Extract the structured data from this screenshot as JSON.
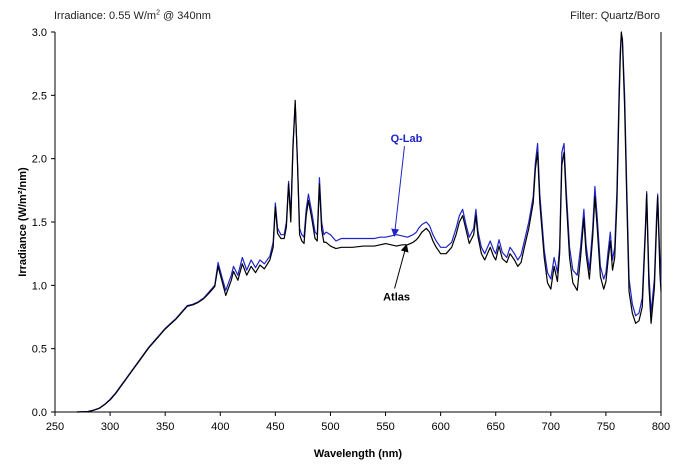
{
  "header": {
    "irradiance_prefix": "Irradiance: 0.55 W/m",
    "irradiance_sup": "2",
    "irradiance_suffix": " @ 340nm",
    "filter": "Filter: Quartz/Boro"
  },
  "chart_data": {
    "type": "line",
    "title": "",
    "xlabel": "Wavelength (nm)",
    "ylabel": "Irradiance (W/m²/nm)",
    "xlim": [
      250,
      800
    ],
    "ylim": [
      0,
      3.0
    ],
    "xticks": [
      250,
      300,
      350,
      400,
      450,
      500,
      550,
      600,
      650,
      700,
      750,
      800
    ],
    "yticks": [
      0,
      0.5,
      1.0,
      1.5,
      2.0,
      2.5,
      3.0
    ],
    "ytick_labels": [
      "0.0",
      "0.5",
      "1.0",
      "1.5",
      "2.0",
      "2.5",
      "3.0"
    ],
    "grid": false,
    "legend": "annotations",
    "annotations": [
      {
        "text": "Q-Lab",
        "color": "#1f24c8",
        "label_at": [
          569,
          2.13
        ],
        "arrow_to": [
          558,
          1.39
        ]
      },
      {
        "text": "Atlas",
        "color": "#000000",
        "label_at": [
          560,
          0.88
        ],
        "arrow_to": [
          569,
          1.32
        ]
      }
    ],
    "series": [
      {
        "name": "Q-Lab",
        "color": "#1f24c8",
        "points": [
          [
            270,
            0
          ],
          [
            280,
            0.004
          ],
          [
            285,
            0.015
          ],
          [
            290,
            0.03
          ],
          [
            295,
            0.06
          ],
          [
            300,
            0.1
          ],
          [
            305,
            0.15
          ],
          [
            310,
            0.21
          ],
          [
            315,
            0.27
          ],
          [
            320,
            0.33
          ],
          [
            325,
            0.39
          ],
          [
            330,
            0.45
          ],
          [
            335,
            0.51
          ],
          [
            340,
            0.56
          ],
          [
            345,
            0.61
          ],
          [
            350,
            0.66
          ],
          [
            355,
            0.7
          ],
          [
            360,
            0.74
          ],
          [
            365,
            0.79
          ],
          [
            370,
            0.84
          ],
          [
            375,
            0.85
          ],
          [
            380,
            0.87
          ],
          [
            385,
            0.9
          ],
          [
            390,
            0.95
          ],
          [
            395,
            1.0
          ],
          [
            398,
            1.18
          ],
          [
            402,
            1.05
          ],
          [
            405,
            0.96
          ],
          [
            410,
            1.08
          ],
          [
            412,
            1.15
          ],
          [
            416,
            1.08
          ],
          [
            420,
            1.22
          ],
          [
            424,
            1.12
          ],
          [
            428,
            1.2
          ],
          [
            432,
            1.14
          ],
          [
            436,
            1.2
          ],
          [
            440,
            1.17
          ],
          [
            445,
            1.23
          ],
          [
            448,
            1.34
          ],
          [
            450,
            1.65
          ],
          [
            452,
            1.45
          ],
          [
            455,
            1.4
          ],
          [
            458,
            1.4
          ],
          [
            460,
            1.5
          ],
          [
            462,
            1.82
          ],
          [
            464,
            1.55
          ],
          [
            466,
            2.12
          ],
          [
            468,
            2.43
          ],
          [
            470,
            2.0
          ],
          [
            472,
            1.45
          ],
          [
            474,
            1.4
          ],
          [
            476,
            1.38
          ],
          [
            478,
            1.6
          ],
          [
            480,
            1.72
          ],
          [
            483,
            1.58
          ],
          [
            486,
            1.42
          ],
          [
            488,
            1.4
          ],
          [
            490,
            1.85
          ],
          [
            492,
            1.5
          ],
          [
            494,
            1.4
          ],
          [
            496,
            1.42
          ],
          [
            500,
            1.4
          ],
          [
            505,
            1.35
          ],
          [
            510,
            1.37
          ],
          [
            520,
            1.37
          ],
          [
            530,
            1.37
          ],
          [
            540,
            1.37
          ],
          [
            545,
            1.38
          ],
          [
            550,
            1.38
          ],
          [
            555,
            1.39
          ],
          [
            560,
            1.4
          ],
          [
            565,
            1.39
          ],
          [
            570,
            1.38
          ],
          [
            575,
            1.4
          ],
          [
            578,
            1.42
          ],
          [
            580,
            1.45
          ],
          [
            583,
            1.48
          ],
          [
            587,
            1.5
          ],
          [
            590,
            1.47
          ],
          [
            593,
            1.4
          ],
          [
            596,
            1.35
          ],
          [
            600,
            1.3
          ],
          [
            605,
            1.3
          ],
          [
            610,
            1.34
          ],
          [
            614,
            1.45
          ],
          [
            617,
            1.55
          ],
          [
            620,
            1.6
          ],
          [
            623,
            1.48
          ],
          [
            626,
            1.38
          ],
          [
            630,
            1.45
          ],
          [
            632,
            1.6
          ],
          [
            634,
            1.42
          ],
          [
            637,
            1.3
          ],
          [
            640,
            1.25
          ],
          [
            645,
            1.35
          ],
          [
            648,
            1.28
          ],
          [
            650,
            1.25
          ],
          [
            653,
            1.36
          ],
          [
            656,
            1.26
          ],
          [
            660,
            1.22
          ],
          [
            663,
            1.3
          ],
          [
            667,
            1.25
          ],
          [
            670,
            1.2
          ],
          [
            673,
            1.24
          ],
          [
            676,
            1.35
          ],
          [
            680,
            1.5
          ],
          [
            684,
            1.7
          ],
          [
            686,
            1.97
          ],
          [
            688,
            2.12
          ],
          [
            690,
            1.72
          ],
          [
            694,
            1.28
          ],
          [
            697,
            1.1
          ],
          [
            700,
            1.05
          ],
          [
            703,
            1.22
          ],
          [
            706,
            1.1
          ],
          [
            708,
            1.3
          ],
          [
            710,
            2.05
          ],
          [
            712,
            2.12
          ],
          [
            714,
            1.75
          ],
          [
            717,
            1.3
          ],
          [
            720,
            1.12
          ],
          [
            724,
            1.08
          ],
          [
            727,
            1.3
          ],
          [
            730,
            1.6
          ],
          [
            732,
            1.32
          ],
          [
            735,
            1.12
          ],
          [
            738,
            1.45
          ],
          [
            740,
            1.78
          ],
          [
            742,
            1.55
          ],
          [
            745,
            1.15
          ],
          [
            748,
            1.05
          ],
          [
            750,
            1.1
          ],
          [
            752,
            1.27
          ],
          [
            754,
            1.42
          ],
          [
            756,
            1.2
          ],
          [
            758,
            1.3
          ],
          [
            760,
            1.75
          ],
          [
            762,
            2.55
          ],
          [
            763,
            2.85
          ],
          [
            764,
            2.98
          ],
          [
            765,
            2.95
          ],
          [
            767,
            2.5
          ],
          [
            769,
            1.75
          ],
          [
            771,
            1.05
          ],
          [
            774,
            0.85
          ],
          [
            777,
            0.76
          ],
          [
            780,
            0.78
          ],
          [
            783,
            0.9
          ],
          [
            786,
            1.5
          ],
          [
            787,
            1.74
          ],
          [
            789,
            1.1
          ],
          [
            791,
            0.78
          ],
          [
            794,
            1.05
          ],
          [
            796,
            1.55
          ],
          [
            797,
            1.72
          ],
          [
            799,
            1.2
          ],
          [
            800,
            1.0
          ]
        ]
      },
      {
        "name": "Atlas",
        "color": "#000000",
        "points": [
          [
            270,
            0
          ],
          [
            280,
            0.003
          ],
          [
            285,
            0.013
          ],
          [
            290,
            0.028
          ],
          [
            295,
            0.058
          ],
          [
            300,
            0.095
          ],
          [
            305,
            0.145
          ],
          [
            310,
            0.205
          ],
          [
            315,
            0.265
          ],
          [
            320,
            0.325
          ],
          [
            325,
            0.385
          ],
          [
            330,
            0.445
          ],
          [
            335,
            0.505
          ],
          [
            340,
            0.555
          ],
          [
            345,
            0.605
          ],
          [
            350,
            0.655
          ],
          [
            355,
            0.695
          ],
          [
            360,
            0.735
          ],
          [
            365,
            0.785
          ],
          [
            370,
            0.835
          ],
          [
            375,
            0.845
          ],
          [
            380,
            0.865
          ],
          [
            385,
            0.895
          ],
          [
            390,
            0.94
          ],
          [
            395,
            0.99
          ],
          [
            398,
            1.15
          ],
          [
            402,
            1.02
          ],
          [
            405,
            0.92
          ],
          [
            410,
            1.04
          ],
          [
            412,
            1.11
          ],
          [
            416,
            1.04
          ],
          [
            420,
            1.17
          ],
          [
            424,
            1.08
          ],
          [
            428,
            1.15
          ],
          [
            432,
            1.1
          ],
          [
            436,
            1.16
          ],
          [
            440,
            1.13
          ],
          [
            445,
            1.2
          ],
          [
            448,
            1.3
          ],
          [
            450,
            1.62
          ],
          [
            452,
            1.41
          ],
          [
            455,
            1.37
          ],
          [
            458,
            1.37
          ],
          [
            460,
            1.46
          ],
          [
            462,
            1.8
          ],
          [
            464,
            1.5
          ],
          [
            466,
            2.08
          ],
          [
            468,
            2.46
          ],
          [
            470,
            1.98
          ],
          [
            472,
            1.4
          ],
          [
            474,
            1.35
          ],
          [
            476,
            1.33
          ],
          [
            478,
            1.55
          ],
          [
            480,
            1.67
          ],
          [
            483,
            1.53
          ],
          [
            486,
            1.37
          ],
          [
            488,
            1.35
          ],
          [
            490,
            1.8
          ],
          [
            492,
            1.44
          ],
          [
            494,
            1.34
          ],
          [
            496,
            1.34
          ],
          [
            500,
            1.31
          ],
          [
            505,
            1.29
          ],
          [
            510,
            1.3
          ],
          [
            520,
            1.3
          ],
          [
            530,
            1.31
          ],
          [
            540,
            1.31
          ],
          [
            545,
            1.32
          ],
          [
            550,
            1.33
          ],
          [
            555,
            1.32
          ],
          [
            560,
            1.31
          ],
          [
            565,
            1.32
          ],
          [
            570,
            1.32
          ],
          [
            575,
            1.34
          ],
          [
            578,
            1.36
          ],
          [
            580,
            1.38
          ],
          [
            583,
            1.42
          ],
          [
            587,
            1.45
          ],
          [
            590,
            1.42
          ],
          [
            593,
            1.35
          ],
          [
            596,
            1.3
          ],
          [
            600,
            1.25
          ],
          [
            605,
            1.25
          ],
          [
            610,
            1.3
          ],
          [
            614,
            1.4
          ],
          [
            617,
            1.5
          ],
          [
            620,
            1.55
          ],
          [
            623,
            1.44
          ],
          [
            626,
            1.33
          ],
          [
            630,
            1.4
          ],
          [
            632,
            1.55
          ],
          [
            634,
            1.38
          ],
          [
            637,
            1.25
          ],
          [
            640,
            1.2
          ],
          [
            645,
            1.3
          ],
          [
            648,
            1.23
          ],
          [
            650,
            1.2
          ],
          [
            653,
            1.31
          ],
          [
            656,
            1.21
          ],
          [
            660,
            1.18
          ],
          [
            663,
            1.25
          ],
          [
            667,
            1.2
          ],
          [
            670,
            1.15
          ],
          [
            673,
            1.18
          ],
          [
            676,
            1.3
          ],
          [
            680,
            1.45
          ],
          [
            684,
            1.65
          ],
          [
            686,
            1.92
          ],
          [
            688,
            2.05
          ],
          [
            690,
            1.65
          ],
          [
            694,
            1.22
          ],
          [
            697,
            1.02
          ],
          [
            700,
            0.97
          ],
          [
            703,
            1.15
          ],
          [
            706,
            1.03
          ],
          [
            708,
            1.25
          ],
          [
            710,
            1.95
          ],
          [
            712,
            2.05
          ],
          [
            714,
            1.68
          ],
          [
            717,
            1.22
          ],
          [
            720,
            1.02
          ],
          [
            724,
            0.96
          ],
          [
            727,
            1.22
          ],
          [
            730,
            1.53
          ],
          [
            732,
            1.25
          ],
          [
            735,
            1.05
          ],
          [
            738,
            1.38
          ],
          [
            740,
            1.7
          ],
          [
            742,
            1.47
          ],
          [
            745,
            1.07
          ],
          [
            748,
            0.97
          ],
          [
            750,
            1.03
          ],
          [
            752,
            1.2
          ],
          [
            754,
            1.35
          ],
          [
            756,
            1.12
          ],
          [
            758,
            1.22
          ],
          [
            760,
            1.65
          ],
          [
            762,
            2.45
          ],
          [
            763,
            2.78
          ],
          [
            764,
            3.0
          ],
          [
            765,
            2.92
          ],
          [
            767,
            2.4
          ],
          [
            769,
            1.65
          ],
          [
            771,
            0.95
          ],
          [
            774,
            0.78
          ],
          [
            777,
            0.7
          ],
          [
            780,
            0.72
          ],
          [
            783,
            0.83
          ],
          [
            786,
            1.45
          ],
          [
            787,
            1.72
          ],
          [
            789,
            1.0
          ],
          [
            791,
            0.7
          ],
          [
            794,
            0.98
          ],
          [
            796,
            1.48
          ],
          [
            797,
            1.7
          ],
          [
            799,
            1.1
          ],
          [
            800,
            0.95
          ]
        ]
      }
    ]
  }
}
